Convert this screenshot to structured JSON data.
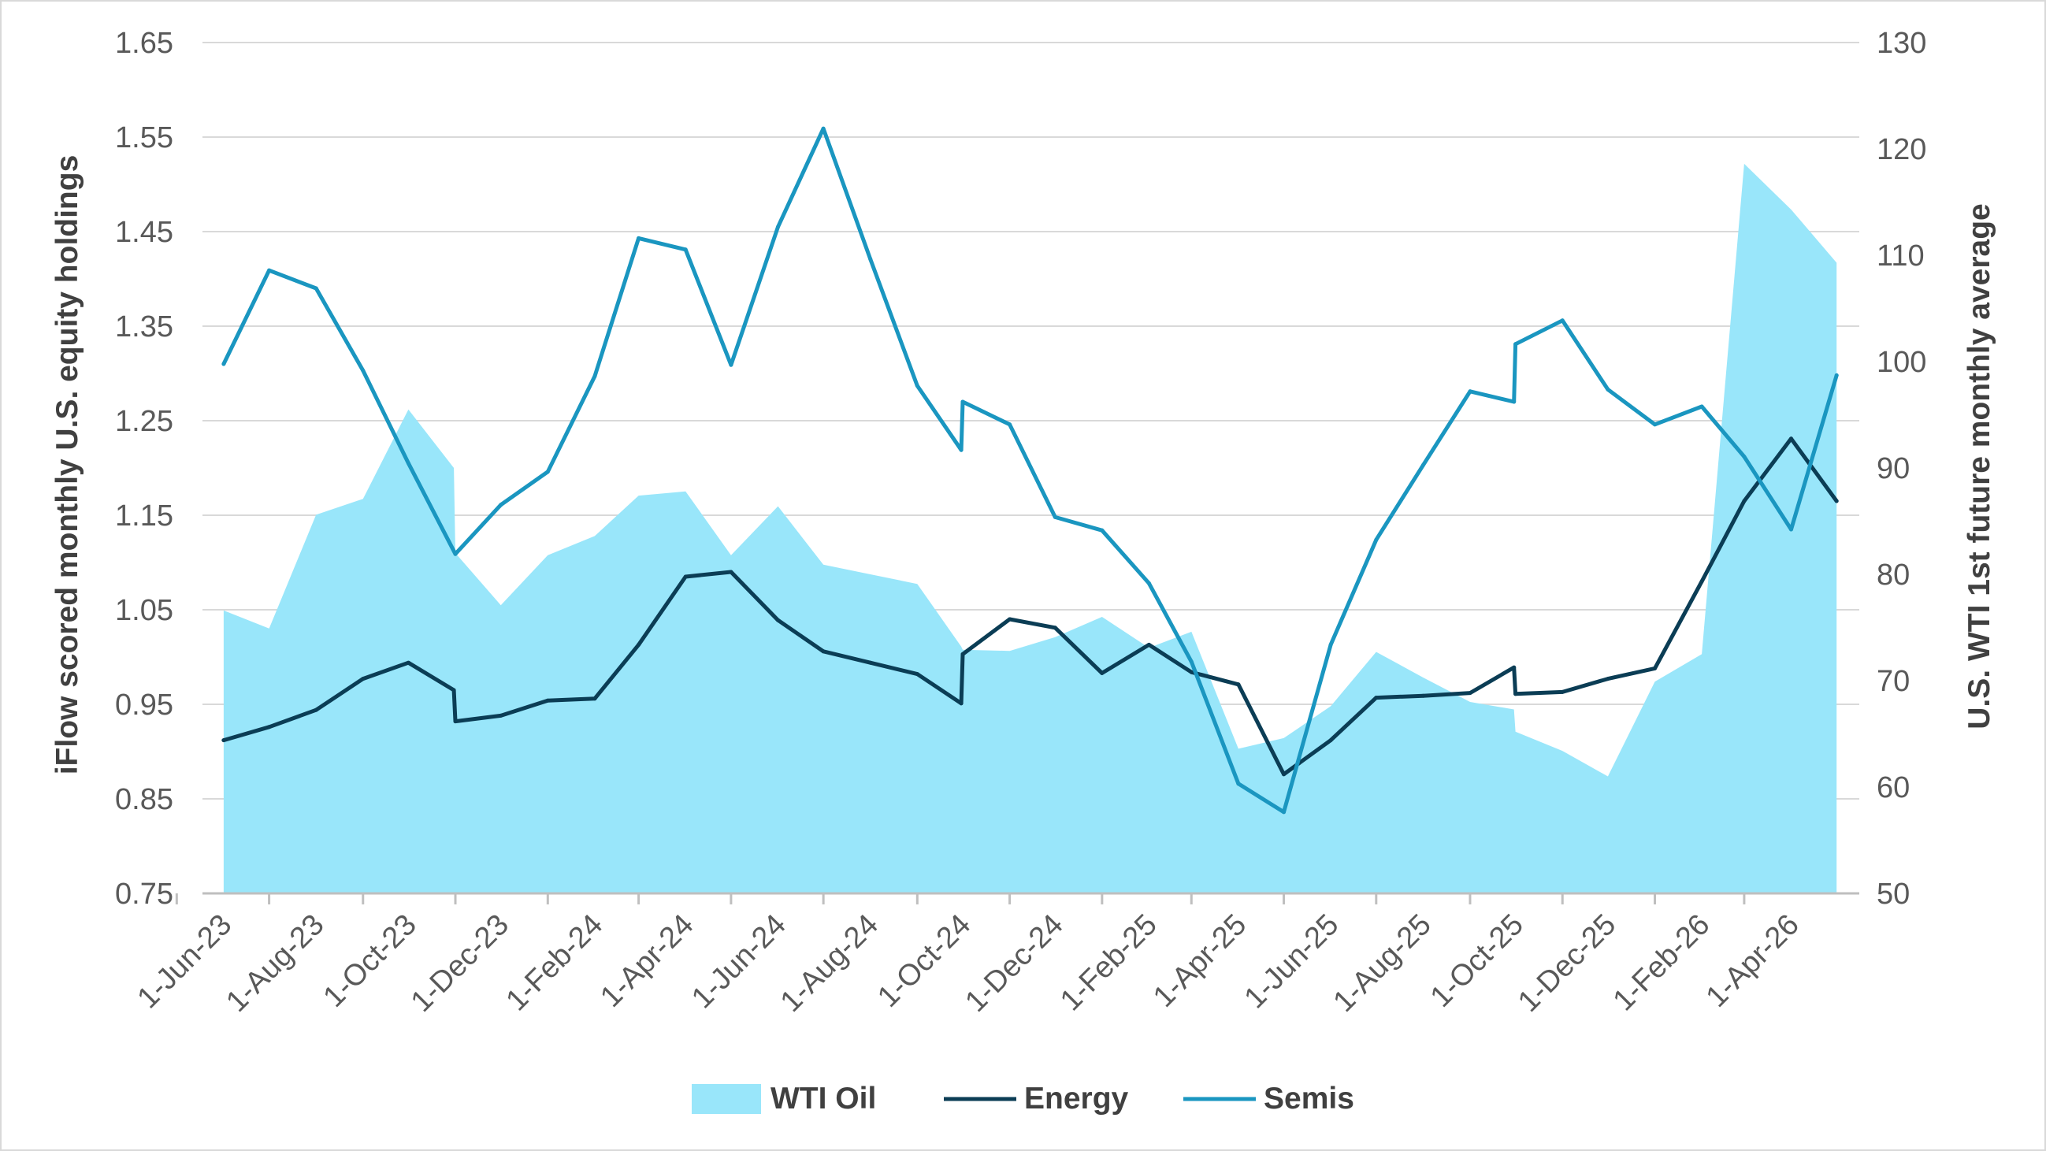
{
  "chart_data": {
    "type": "line",
    "xlabel": "",
    "ylabel": "iFlow scored monthly U.S. equity holdings",
    "y2label": "U.S. WTI 1st future monthly average",
    "ylim": [
      0.75,
      1.65
    ],
    "y_ticks": [
      "1.65",
      "1.55",
      "1.45",
      "1.35",
      "1.25",
      "1.15",
      "1.05",
      "0.95",
      "0.85",
      "0.75"
    ],
    "y2lim": [
      50,
      130
    ],
    "y2_ticks": [
      "130",
      "120",
      "110",
      "100",
      "90",
      "80",
      "70",
      "60",
      "50"
    ],
    "x_tick_labels": [
      "1-Jun-23",
      "1-Aug-23",
      "1-Oct-23",
      "1-Dec-23",
      "1-Feb-24",
      "1-Apr-24",
      "1-Jun-24",
      "1-Aug-24",
      "1-Oct-24",
      "1-Dec-24",
      "1-Feb-25",
      "1-Apr-25",
      "1-Jun-25",
      "1-Aug-25",
      "1-Oct-25",
      "1-Dec-25",
      "1-Feb-26",
      "1-Apr-26"
    ],
    "grid": "horizontal",
    "legend_position": "bottom",
    "series": [
      {
        "name": "WTI Oil",
        "type": "area",
        "axis": "right",
        "color": "#99e6fa",
        "points": [
          [
            "2023-06-01",
            76.6
          ],
          [
            "2023-07-01",
            74.9
          ],
          [
            "2023-08-01",
            85.6
          ],
          [
            "2023-09-01",
            87.1
          ],
          [
            "2023-10-01",
            95.5
          ],
          [
            "2023-10-31",
            90.0
          ],
          [
            "2023-11-01",
            82.0
          ],
          [
            "2023-12-01",
            77.1
          ],
          [
            "2024-01-01",
            81.8
          ],
          [
            "2024-02-01",
            83.6
          ],
          [
            "2024-03-01",
            87.4
          ],
          [
            "2024-04-01",
            87.8
          ],
          [
            "2024-05-01",
            81.8
          ],
          [
            "2024-06-01",
            86.4
          ],
          [
            "2024-07-01",
            80.9
          ],
          [
            "2024-08-01",
            80.0
          ],
          [
            "2024-09-01",
            79.1
          ],
          [
            "2024-09-30",
            73.2
          ],
          [
            "2024-10-01",
            72.9
          ],
          [
            "2024-11-01",
            72.8
          ],
          [
            "2024-12-01",
            74.1
          ],
          [
            "2025-01-01",
            76.0
          ],
          [
            "2025-02-01",
            73.1
          ],
          [
            "2025-03-01",
            74.6
          ],
          [
            "2025-04-01",
            63.6
          ],
          [
            "2025-05-01",
            64.6
          ],
          [
            "2025-06-01",
            67.6
          ],
          [
            "2025-07-01",
            72.7
          ],
          [
            "2025-08-01",
            70.3
          ],
          [
            "2025-09-01",
            68.0
          ],
          [
            "2025-09-30",
            67.3
          ],
          [
            "2025-10-01",
            65.2
          ],
          [
            "2025-11-01",
            63.4
          ],
          [
            "2025-12-01",
            61.0
          ],
          [
            "2026-01-01",
            69.9
          ],
          [
            "2026-02-01",
            72.5
          ],
          [
            "2026-03-01",
            118.6
          ],
          [
            "2026-04-01",
            114.3
          ],
          [
            "2026-05-01",
            109.3
          ]
        ]
      },
      {
        "name": "Energy",
        "type": "line",
        "axis": "left",
        "color": "#0b3d55",
        "points": [
          [
            "2023-06-01",
            0.912
          ],
          [
            "2023-07-01",
            0.926
          ],
          [
            "2023-08-01",
            0.944
          ],
          [
            "2023-09-01",
            0.977
          ],
          [
            "2023-10-01",
            0.994
          ],
          [
            "2023-10-31",
            0.965
          ],
          [
            "2023-11-01",
            0.932
          ],
          [
            "2023-12-01",
            0.938
          ],
          [
            "2024-01-01",
            0.954
          ],
          [
            "2024-02-01",
            0.956
          ],
          [
            "2024-03-01",
            1.013
          ],
          [
            "2024-04-01",
            1.085
          ],
          [
            "2024-05-01",
            1.09
          ],
          [
            "2024-06-01",
            1.039
          ],
          [
            "2024-07-01",
            1.006
          ],
          [
            "2024-08-01",
            0.994
          ],
          [
            "2024-09-01",
            0.982
          ],
          [
            "2024-09-30",
            0.951
          ],
          [
            "2024-10-01",
            1.003
          ],
          [
            "2024-11-01",
            1.04
          ],
          [
            "2024-12-01",
            1.031
          ],
          [
            "2025-01-01",
            0.983
          ],
          [
            "2025-02-01",
            1.013
          ],
          [
            "2025-03-01",
            0.984
          ],
          [
            "2025-04-01",
            0.971
          ],
          [
            "2025-05-01",
            0.876
          ],
          [
            "2025-06-01",
            0.912
          ],
          [
            "2025-07-01",
            0.957
          ],
          [
            "2025-08-01",
            0.959
          ],
          [
            "2025-09-01",
            0.962
          ],
          [
            "2025-09-30",
            0.989
          ],
          [
            "2025-10-01",
            0.961
          ],
          [
            "2025-11-01",
            0.963
          ],
          [
            "2025-12-01",
            0.977
          ],
          [
            "2026-01-01",
            0.988
          ],
          [
            "2026-02-01",
            1.08
          ],
          [
            "2026-03-01",
            1.165
          ],
          [
            "2026-04-01",
            1.231
          ],
          [
            "2026-05-01",
            1.165
          ]
        ]
      },
      {
        "name": "Semis",
        "type": "line",
        "axis": "left",
        "color": "#1a96c0",
        "points": [
          [
            "2023-06-01",
            1.31
          ],
          [
            "2023-07-01",
            1.409
          ],
          [
            "2023-08-01",
            1.39
          ],
          [
            "2023-09-01",
            1.303
          ],
          [
            "2023-10-01",
            1.205
          ],
          [
            "2023-11-01",
            1.109
          ],
          [
            "2023-12-01",
            1.161
          ],
          [
            "2024-01-01",
            1.196
          ],
          [
            "2024-02-01",
            1.297
          ],
          [
            "2024-03-01",
            1.443
          ],
          [
            "2024-04-01",
            1.431
          ],
          [
            "2024-05-01",
            1.309
          ],
          [
            "2024-06-01",
            1.455
          ],
          [
            "2024-07-01",
            1.559
          ],
          [
            "2024-08-01",
            1.421
          ],
          [
            "2024-09-01",
            1.287
          ],
          [
            "2024-09-30",
            1.219
          ],
          [
            "2024-10-01",
            1.27
          ],
          [
            "2024-11-01",
            1.246
          ],
          [
            "2024-12-01",
            1.148
          ],
          [
            "2025-01-01",
            1.134
          ],
          [
            "2025-02-01",
            1.078
          ],
          [
            "2025-03-01",
            0.995
          ],
          [
            "2025-04-01",
            0.866
          ],
          [
            "2025-05-01",
            0.836
          ],
          [
            "2025-06-01",
            1.013
          ],
          [
            "2025-07-01",
            1.124
          ],
          [
            "2025-08-01",
            1.203
          ],
          [
            "2025-09-01",
            1.281
          ],
          [
            "2025-09-30",
            1.27
          ],
          [
            "2025-10-01",
            1.331
          ],
          [
            "2025-11-01",
            1.356
          ],
          [
            "2025-12-01",
            1.283
          ],
          [
            "2026-01-01",
            1.246
          ],
          [
            "2026-02-01",
            1.265
          ],
          [
            "2026-03-01",
            1.212
          ],
          [
            "2026-04-01",
            1.135
          ],
          [
            "2026-05-01",
            1.298
          ]
        ]
      }
    ]
  }
}
